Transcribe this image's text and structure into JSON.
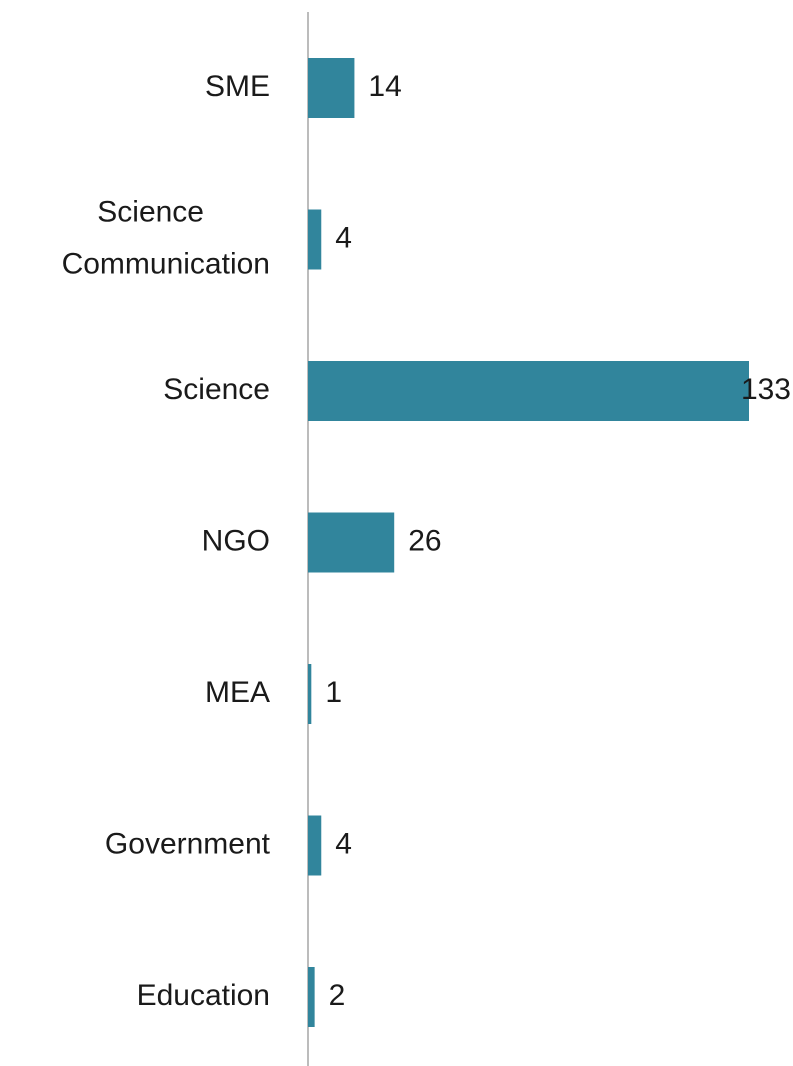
{
  "chart_data": {
    "type": "bar",
    "orientation": "horizontal",
    "categories": [
      "SME",
      "Science Communication",
      "Science",
      "NGO",
      "MEA",
      "Government",
      "Education"
    ],
    "values": [
      14,
      4,
      133,
      26,
      1,
      4,
      2
    ],
    "color": "#31859c"
  }
}
